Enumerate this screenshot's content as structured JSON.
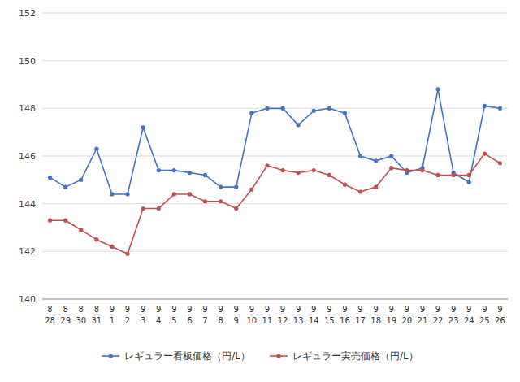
{
  "chart_data": {
    "type": "line",
    "categories": [
      [
        "8",
        "28"
      ],
      [
        "8",
        "29"
      ],
      [
        "8",
        "30"
      ],
      [
        "8",
        "31"
      ],
      [
        "9",
        "1"
      ],
      [
        "9",
        "2"
      ],
      [
        "9",
        "3"
      ],
      [
        "9",
        "4"
      ],
      [
        "9",
        "5"
      ],
      [
        "9",
        "6"
      ],
      [
        "9",
        "7"
      ],
      [
        "9",
        "8"
      ],
      [
        "9",
        "9"
      ],
      [
        "9",
        "10"
      ],
      [
        "9",
        "11"
      ],
      [
        "9",
        "12"
      ],
      [
        "9",
        "13"
      ],
      [
        "9",
        "14"
      ],
      [
        "9",
        "15"
      ],
      [
        "9",
        "16"
      ],
      [
        "9",
        "17"
      ],
      [
        "9",
        "18"
      ],
      [
        "9",
        "19"
      ],
      [
        "9",
        "20"
      ],
      [
        "9",
        "21"
      ],
      [
        "9",
        "22"
      ],
      [
        "9",
        "23"
      ],
      [
        "9",
        "24"
      ],
      [
        "9",
        "25"
      ],
      [
        "9",
        "26"
      ]
    ],
    "series": [
      {
        "name": "レギュラー看板価格（円/L）",
        "color": "#4472C4",
        "marker": "circle",
        "values": [
          145.1,
          144.7,
          145.0,
          146.3,
          144.4,
          144.4,
          147.2,
          145.4,
          145.4,
          145.3,
          145.2,
          144.7,
          144.7,
          147.8,
          148.0,
          148.0,
          147.3,
          147.9,
          148.0,
          147.8,
          146.0,
          145.8,
          146.0,
          145.3,
          145.5,
          148.8,
          145.3,
          144.9,
          148.1,
          148.0
        ]
      },
      {
        "name": "レギュラー実売価格（円/L）",
        "color": "#C0504D",
        "marker": "circle",
        "values": [
          143.3,
          143.3,
          142.9,
          142.5,
          142.2,
          141.9,
          143.8,
          143.8,
          144.4,
          144.4,
          144.1,
          144.1,
          143.8,
          144.6,
          145.6,
          145.4,
          145.3,
          145.4,
          145.2,
          144.8,
          144.5,
          144.7,
          145.5,
          145.4,
          145.4,
          145.2,
          145.2,
          145.2,
          146.1,
          145.7
        ]
      }
    ],
    "ylim": [
      140,
      152
    ],
    "yticks": [
      140,
      142,
      144,
      146,
      148,
      150,
      152
    ],
    "grid": true,
    "legend": "bottom"
  }
}
